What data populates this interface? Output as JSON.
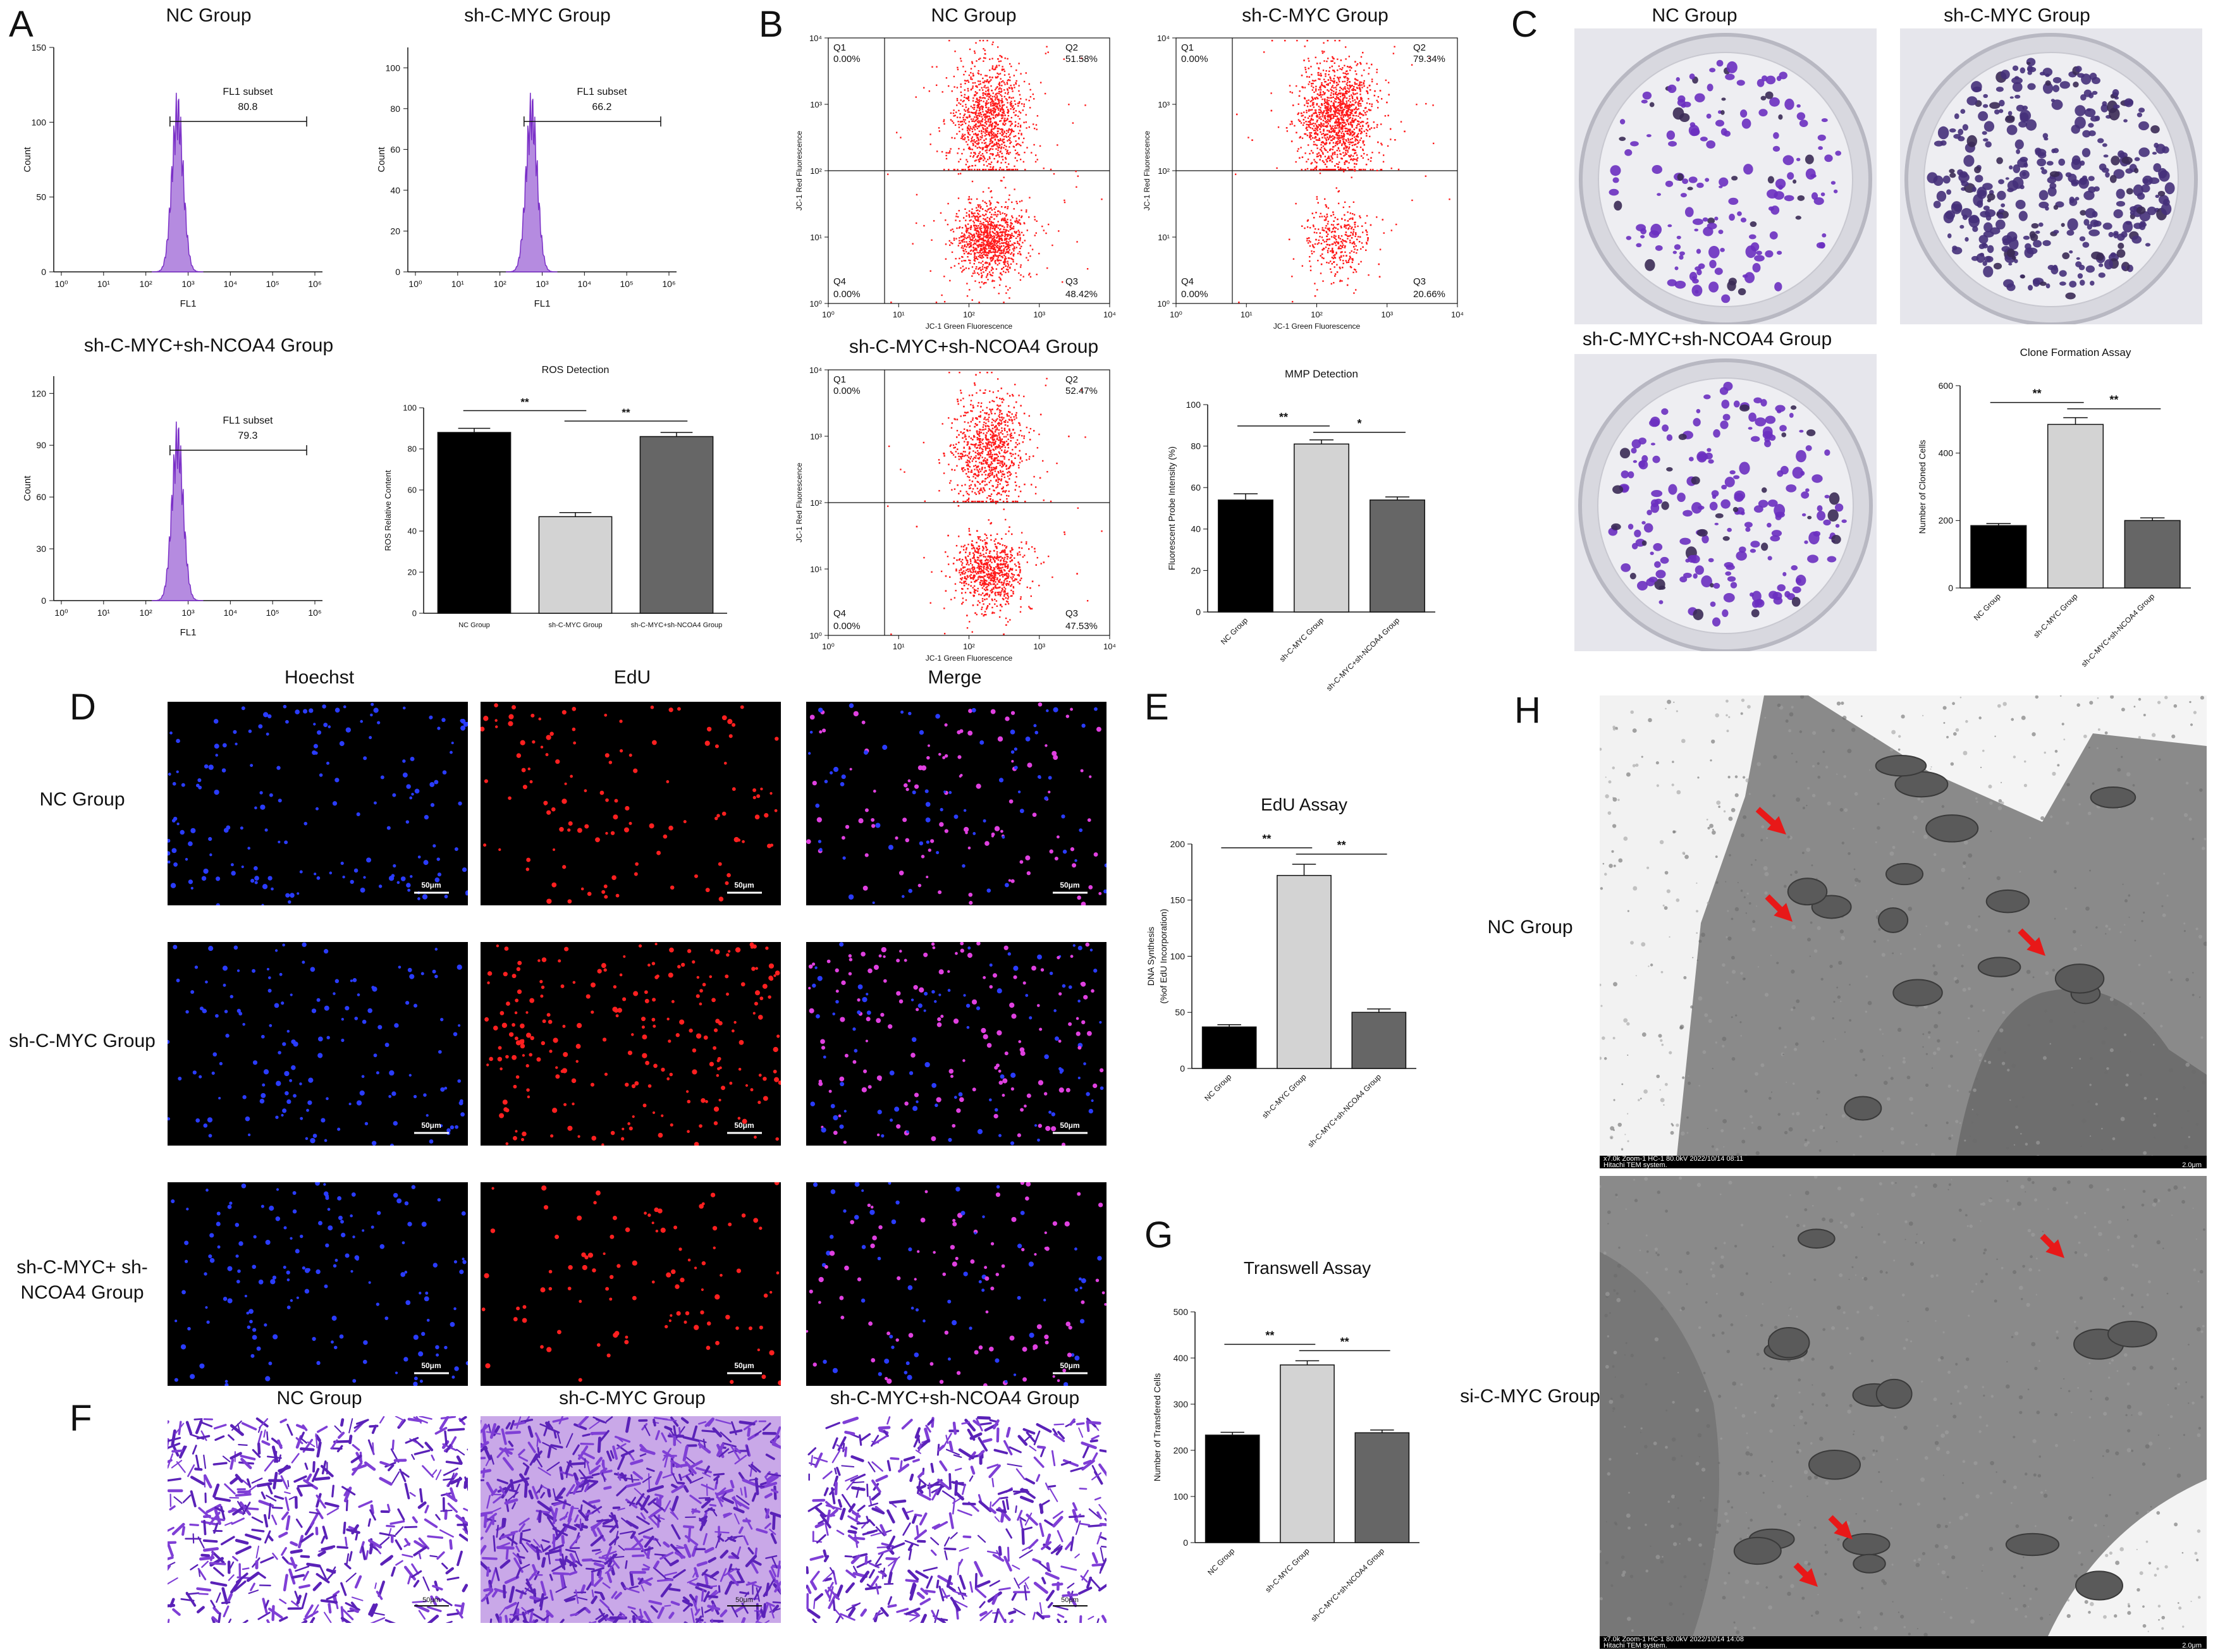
{
  "panel_letters": {
    "A": "A",
    "B": "B",
    "C": "C",
    "D": "D",
    "E": "E",
    "F": "F",
    "G": "G",
    "H": "H"
  },
  "group_names": {
    "nc": "NC Group",
    "sh": "sh-C-MYC Group",
    "combo": "sh-C-MYC+sh-NCOA4 Group",
    "combo_line1": "sh-C-MYC+",
    "combo_line2": "sh-NCOA4 Group",
    "si": "si-C-MYC Group"
  },
  "flow_A": {
    "xlabel": "FL1",
    "ylabel": "Count",
    "subset_label": "FL1 subset",
    "x_ticks": [
      "10⁰",
      "10¹",
      "10²",
      "10³",
      "10⁴",
      "10⁵",
      "10⁶"
    ],
    "panels": [
      {
        "title": "NC Group",
        "subset_value": "80.8",
        "y_ticks": [
          "0",
          "50",
          "100",
          "150"
        ],
        "ymax": 150
      },
      {
        "title": "sh-C-MYC Group",
        "subset_value": "66.2",
        "y_ticks": [
          "0",
          "20",
          "40",
          "60",
          "80",
          "100"
        ],
        "ymax": 110
      },
      {
        "title": "sh-C-MYC+sh-NCOA4 Group",
        "subset_value": "79.3",
        "y_ticks": [
          "0",
          "30",
          "60",
          "90",
          "120"
        ],
        "ymax": 130
      }
    ]
  },
  "jc1_B": {
    "xlabel": "JC-1 Green Fluorescence",
    "ylabel": "JC-1 Red Fluorescence",
    "ticks": [
      "10⁰",
      "10¹",
      "10²",
      "10³",
      "10⁴"
    ],
    "panels": [
      {
        "title": "NC Group",
        "q1": "Q1",
        "q1v": "0.00%",
        "q2": "Q2",
        "q2v": "51.58%",
        "q3": "Q3",
        "q3v": "48.42%",
        "q4": "Q4",
        "q4v": "0.00%"
      },
      {
        "title": "sh-C-MYC Group",
        "q1": "Q1",
        "q1v": "0.00%",
        "q2": "Q2",
        "q2v": "79.34%",
        "q3": "Q3",
        "q3v": "20.66%",
        "q4": "Q4",
        "q4v": "0.00%"
      },
      {
        "title": "sh-C-MYC+sh-NCOA4 Group",
        "q1": "Q1",
        "q1v": "0.00%",
        "q2": "Q2",
        "q2v": "52.47%",
        "q3": "Q3",
        "q3v": "47.53%",
        "q4": "Q4",
        "q4v": "0.00%"
      }
    ]
  },
  "chart_data": [
    {
      "id": "ros",
      "type": "bar",
      "title": "ROS Detection",
      "ylabel": "ROS Relative Content",
      "xlabel": "",
      "categories": [
        "NC Group",
        "sh-C-MYC Group",
        "sh-C-MYC+sh-NCOA4 Group"
      ],
      "values": [
        88,
        47,
        86
      ],
      "errors": [
        2,
        2,
        2
      ],
      "ylim": [
        0,
        100
      ],
      "yticks": [
        0,
        20,
        40,
        60,
        80,
        100
      ],
      "colors": [
        "#000000",
        "#d3d3d3",
        "#666666"
      ],
      "labels_rotated": false,
      "sig": [
        {
          "from": 0,
          "to": 1,
          "label": "**"
        },
        {
          "from": 1,
          "to": 2,
          "label": "**"
        }
      ]
    },
    {
      "id": "mmp",
      "type": "bar",
      "title": "MMP Detection",
      "ylabel": "Fluorescent Probe Intensity (%)",
      "xlabel": "",
      "categories": [
        "NC Group",
        "sh-C-MYC Group",
        "sh-C-MYC+sh-NCOA4 Group"
      ],
      "values": [
        54,
        81,
        54
      ],
      "errors": [
        3,
        2,
        1.5
      ],
      "ylim": [
        0,
        100
      ],
      "yticks": [
        0,
        20,
        40,
        60,
        80,
        100
      ],
      "colors": [
        "#000000",
        "#d3d3d3",
        "#666666"
      ],
      "labels_rotated": true,
      "sig": [
        {
          "from": 0,
          "to": 1,
          "label": "**"
        },
        {
          "from": 1,
          "to": 2,
          "label": "*"
        }
      ]
    },
    {
      "id": "clone",
      "type": "bar",
      "title": "Clone Formation Assay",
      "ylabel": "Number of Cloned Cells",
      "xlabel": "",
      "categories": [
        "NC Group",
        "sh-C-MYC Group",
        "sh-C-MYC+sh-NCOA4 Group"
      ],
      "values": [
        185,
        485,
        200
      ],
      "errors": [
        6,
        20,
        8
      ],
      "ylim": [
        0,
        600
      ],
      "yticks": [
        0,
        200,
        400,
        600
      ],
      "colors": [
        "#000000",
        "#d3d3d3",
        "#666666"
      ],
      "labels_rotated": true,
      "sig": [
        {
          "from": 0,
          "to": 1,
          "label": "**"
        },
        {
          "from": 1,
          "to": 2,
          "label": "**"
        }
      ]
    },
    {
      "id": "edu",
      "type": "bar",
      "title": "EdU Assay",
      "ylabel": "DNA Synthesis",
      "ylabel2": "(%of EdU Incorporation)",
      "xlabel": "",
      "categories": [
        "NC Group",
        "sh-C-MYC Group",
        "sh-C-MYC+sh-NCOA4 Group"
      ],
      "values": [
        37,
        172,
        50
      ],
      "errors": [
        2,
        10,
        3
      ],
      "ylim": [
        0,
        200
      ],
      "yticks": [
        0,
        50,
        100,
        150,
        200
      ],
      "ytick_labels": [
        "0",
        "50",
        "100",
        "150",
        "200"
      ],
      "colors": [
        "#000000",
        "#d3d3d3",
        "#666666"
      ],
      "labels_rotated": true,
      "sig": [
        {
          "from": 0,
          "to": 1,
          "label": "**"
        },
        {
          "from": 1,
          "to": 2,
          "label": "**"
        }
      ]
    },
    {
      "id": "transwell",
      "type": "bar",
      "title": "Transwell Assay",
      "ylabel": "Number of Transfered Cells",
      "xlabel": "",
      "categories": [
        "NC Group",
        "sh-C-MYC Group",
        "sh-C-MYC+sh-NCOA4 Group"
      ],
      "values": [
        233,
        385,
        238
      ],
      "errors": [
        6,
        9,
        6
      ],
      "ylim": [
        0,
        500
      ],
      "yticks": [
        0,
        100,
        200,
        300,
        400,
        500
      ],
      "colors": [
        "#000000",
        "#d3d3d3",
        "#666666"
      ],
      "labels_rotated": true,
      "sig": [
        {
          "from": 0,
          "to": 1,
          "label": "**"
        },
        {
          "from": 1,
          "to": 2,
          "label": "**"
        }
      ]
    }
  ],
  "edu_D": {
    "columns": [
      "Hoechst",
      "EdU",
      "Merge"
    ],
    "scale_bar": "50μm",
    "rows": [
      "NC Group",
      "sh-C-MYC Group",
      "sh-C-MYC+ sh-NCOA4 Group"
    ]
  },
  "transwell_F": {
    "titles": [
      "NC Group",
      "sh-C-MYC Group",
      "sh-C-MYC+sh-NCOA4 Group"
    ],
    "scale_bar": "50μm"
  },
  "tem_H": {
    "rows": [
      "NC Group",
      "si-C-MYC Group"
    ],
    "captions": [
      {
        "left": "x7.0k Zoom-1 HC-1 80.0kV 2022/10/14 08:11",
        "left2": "Hitachi TEM system.",
        "right": "2.0μm"
      },
      {
        "left": "x7.0k Zoom-1 HC-1 80.0kV 2022/10/14 14:08",
        "left2": "Hitachi TEM system.",
        "right": "2.0μm"
      }
    ]
  },
  "colors": {
    "histogram_fill": "#b58be0",
    "histogram_line": "#7a2fc7",
    "scatter": "#ff1a1a",
    "nuclei_blue": "#2a3cff",
    "nuclei_red": "#ff2020",
    "merge_magenta": "#e040e0",
    "crystal_violet": "#6a2fc0",
    "arrow_red": "#e81818"
  }
}
